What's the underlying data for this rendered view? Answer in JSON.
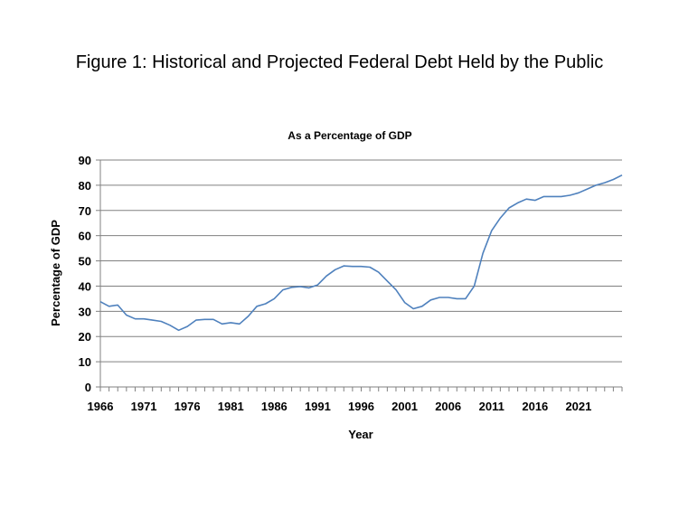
{
  "figure": {
    "title": "Figure 1: Historical and Projected Federal Debt Held by the Public"
  },
  "chart_data": {
    "type": "line",
    "title": "As a Percentage of GDP",
    "xlabel": "Year",
    "ylabel": "Percentage of GDP",
    "xlim": [
      1966,
      2026
    ],
    "ylim": [
      0,
      90
    ],
    "x_ticks": [
      1966,
      1971,
      1976,
      1981,
      1986,
      1991,
      1996,
      2001,
      2006,
      2011,
      2016,
      2021
    ],
    "y_ticks": [
      0,
      10,
      20,
      30,
      40,
      50,
      60,
      70,
      80,
      90
    ],
    "grid": "horizontal",
    "legend": "none",
    "series": [
      {
        "color": "#4f81bd",
        "x": [
          1966,
          1967,
          1968,
          1969,
          1970,
          1971,
          1972,
          1973,
          1974,
          1975,
          1976,
          1977,
          1978,
          1979,
          1980,
          1981,
          1982,
          1983,
          1984,
          1985,
          1986,
          1987,
          1988,
          1989,
          1990,
          1991,
          1992,
          1993,
          1994,
          1995,
          1996,
          1997,
          1998,
          1999,
          2000,
          2001,
          2002,
          2003,
          2004,
          2005,
          2006,
          2007,
          2008,
          2009,
          2010,
          2011,
          2012,
          2013,
          2014,
          2015,
          2016,
          2017,
          2018,
          2019,
          2020,
          2021,
          2022,
          2023,
          2024,
          2025,
          2026
        ],
        "y": [
          33.8,
          32.0,
          32.5,
          28.5,
          27.0,
          27.0,
          26.5,
          26.0,
          24.5,
          22.5,
          24.0,
          26.5,
          26.8,
          26.8,
          25.0,
          25.5,
          25.0,
          28.0,
          32.0,
          33.0,
          35.0,
          38.5,
          39.5,
          39.8,
          39.3,
          40.5,
          44.0,
          46.5,
          48.0,
          47.8,
          47.8,
          47.5,
          45.5,
          42.0,
          38.5,
          33.5,
          31.0,
          32.0,
          34.5,
          35.5,
          35.5,
          35.0,
          35.0,
          40.0,
          53.0,
          62.0,
          67.0,
          71.0,
          73.0,
          74.5,
          74.0,
          75.5,
          75.5,
          75.5,
          76.0,
          77.0,
          78.5,
          80.0,
          81.0,
          82.3,
          84.0
        ]
      }
    ]
  }
}
